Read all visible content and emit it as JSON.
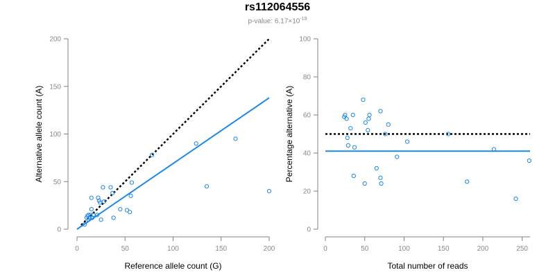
{
  "title": "rs112064556",
  "subtitle": {
    "prefix": "p-value: 6.17×10",
    "exponent": "-19"
  },
  "chart_data": [
    {
      "type": "scatter",
      "xlabel": "Reference allele count (G)",
      "ylabel": "Alternative allele count (A)",
      "xlim": [
        0,
        200
      ],
      "ylim": [
        0,
        200
      ],
      "xticks": [
        "0",
        "50",
        "100",
        "150",
        "200"
      ],
      "yticks": [
        "0",
        "50",
        "100",
        "150",
        "200"
      ],
      "grid": false,
      "point_color": "#1e88e5",
      "points": [
        {
          "x": 8,
          "y": 5
        },
        {
          "x": 10,
          "y": 12
        },
        {
          "x": 11,
          "y": 14
        },
        {
          "x": 12,
          "y": 10
        },
        {
          "x": 12,
          "y": 15
        },
        {
          "x": 13,
          "y": 12
        },
        {
          "x": 14,
          "y": 15
        },
        {
          "x": 15,
          "y": 21
        },
        {
          "x": 15,
          "y": 33
        },
        {
          "x": 16,
          "y": 12
        },
        {
          "x": 17,
          "y": 15
        },
        {
          "x": 21,
          "y": 15
        },
        {
          "x": 22,
          "y": 33
        },
        {
          "x": 23,
          "y": 30
        },
        {
          "x": 24,
          "y": 28
        },
        {
          "x": 25,
          "y": 10
        },
        {
          "x": 27,
          "y": 44
        },
        {
          "x": 28,
          "y": 29
        },
        {
          "x": 35,
          "y": 44
        },
        {
          "x": 37,
          "y": 38
        },
        {
          "x": 38,
          "y": 12
        },
        {
          "x": 45,
          "y": 21
        },
        {
          "x": 52,
          "y": 20
        },
        {
          "x": 55,
          "y": 18
        },
        {
          "x": 56,
          "y": 35
        },
        {
          "x": 57,
          "y": 49
        },
        {
          "x": 78,
          "y": 78
        },
        {
          "x": 124,
          "y": 90
        },
        {
          "x": 135,
          "y": 45
        },
        {
          "x": 165,
          "y": 95
        },
        {
          "x": 200,
          "y": 40
        }
      ],
      "reference_line": {
        "style": "dotted",
        "color": "#000000",
        "x": [
          0,
          200
        ],
        "y": [
          0,
          200
        ]
      },
      "fit_line": {
        "style": "solid",
        "color": "#1e88e5",
        "x": [
          0,
          200
        ],
        "y": [
          0,
          138
        ]
      }
    },
    {
      "type": "scatter",
      "xlabel": "Total number of reads",
      "ylabel": "Percentage alternative (A)",
      "xlim": [
        0,
        260
      ],
      "ylim": [
        0,
        100
      ],
      "xticks": [
        "0",
        "50",
        "100",
        "150",
        "200",
        "250"
      ],
      "yticks": [
        "0",
        "20",
        "40",
        "60",
        "80",
        "100"
      ],
      "grid": false,
      "point_color": "#1e88e5",
      "points": [
        {
          "x": 24,
          "y": 59
        },
        {
          "x": 25,
          "y": 60
        },
        {
          "x": 27,
          "y": 58
        },
        {
          "x": 28,
          "y": 48
        },
        {
          "x": 29,
          "y": 44
        },
        {
          "x": 32,
          "y": 53
        },
        {
          "x": 35,
          "y": 60
        },
        {
          "x": 36,
          "y": 28
        },
        {
          "x": 37,
          "y": 43
        },
        {
          "x": 48,
          "y": 68
        },
        {
          "x": 50,
          "y": 24
        },
        {
          "x": 51,
          "y": 56
        },
        {
          "x": 54,
          "y": 52
        },
        {
          "x": 55,
          "y": 58
        },
        {
          "x": 56,
          "y": 60
        },
        {
          "x": 65,
          "y": 32
        },
        {
          "x": 70,
          "y": 62
        },
        {
          "x": 70,
          "y": 27
        },
        {
          "x": 71,
          "y": 24
        },
        {
          "x": 76,
          "y": 50
        },
        {
          "x": 80,
          "y": 55
        },
        {
          "x": 91,
          "y": 38
        },
        {
          "x": 104,
          "y": 46
        },
        {
          "x": 156,
          "y": 50
        },
        {
          "x": 180,
          "y": 25
        },
        {
          "x": 214,
          "y": 42
        },
        {
          "x": 242,
          "y": 16
        },
        {
          "x": 259,
          "y": 36
        }
      ],
      "reference_line": {
        "style": "dotted",
        "color": "#000000",
        "x": [
          0,
          260
        ],
        "y": [
          50,
          50
        ]
      },
      "fit_line": {
        "style": "solid",
        "color": "#1e88e5",
        "x": [
          0,
          260
        ],
        "y": [
          41,
          41
        ]
      }
    }
  ]
}
